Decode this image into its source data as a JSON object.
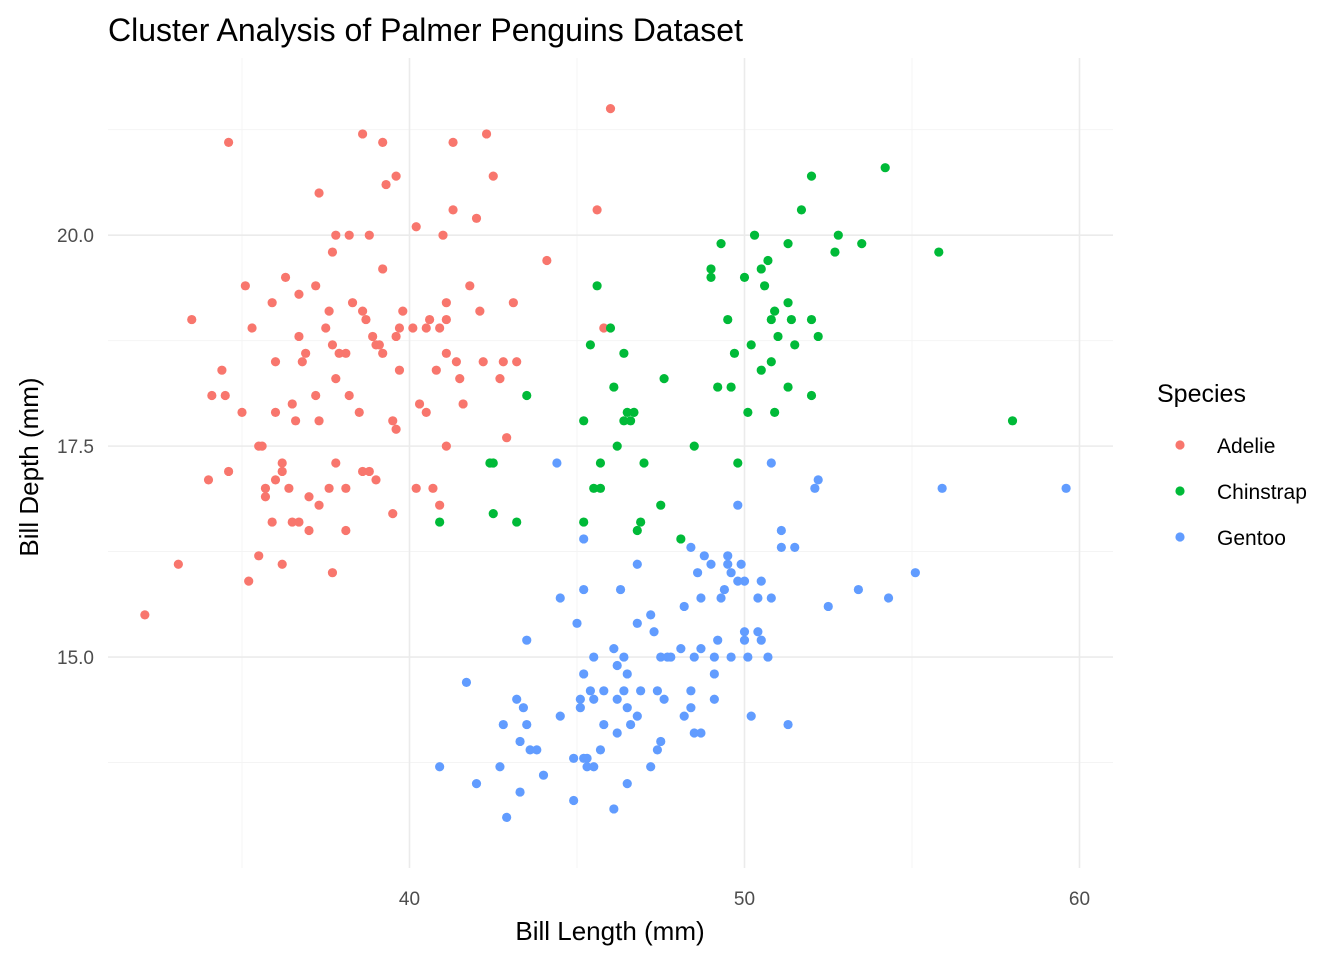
{
  "chart_data": {
    "type": "scatter",
    "title": "Cluster Analysis of Palmer Penguins Dataset",
    "xlabel": "Bill Length (mm)",
    "ylabel": "Bill Depth (mm)",
    "xlim": [
      31.0,
      61.0
    ],
    "ylim": [
      12.5,
      22.1
    ],
    "xticks": [
      40,
      50,
      60
    ],
    "xtick_labels": [
      "40",
      "50",
      "60"
    ],
    "yticks": [
      15.0,
      17.5,
      20.0
    ],
    "ytick_labels": [
      "15.0",
      "17.5",
      "20.0"
    ],
    "grid": true,
    "legend": {
      "title": "Species",
      "position": "right"
    },
    "series": [
      {
        "name": "Adelie",
        "color": "#F8766D",
        "points": [
          [
            32.1,
            15.5
          ],
          [
            33.1,
            16.1
          ],
          [
            33.5,
            19.0
          ],
          [
            34.0,
            17.1
          ],
          [
            34.1,
            18.1
          ],
          [
            34.4,
            18.4
          ],
          [
            34.5,
            18.1
          ],
          [
            34.6,
            21.1
          ],
          [
            34.6,
            17.2
          ],
          [
            35.0,
            17.9
          ],
          [
            35.1,
            19.4
          ],
          [
            35.2,
            15.9
          ],
          [
            35.3,
            18.9
          ],
          [
            35.5,
            16.2
          ],
          [
            35.5,
            17.5
          ],
          [
            35.6,
            17.5
          ],
          [
            35.7,
            17.0
          ],
          [
            35.7,
            16.9
          ],
          [
            35.9,
            16.6
          ],
          [
            35.9,
            19.2
          ],
          [
            36.0,
            17.1
          ],
          [
            36.0,
            17.9
          ],
          [
            36.0,
            18.5
          ],
          [
            36.2,
            16.1
          ],
          [
            36.2,
            17.2
          ],
          [
            36.2,
            17.3
          ],
          [
            36.3,
            19.5
          ],
          [
            36.4,
            17.0
          ],
          [
            36.5,
            16.6
          ],
          [
            36.5,
            18.0
          ],
          [
            36.6,
            17.8
          ],
          [
            36.7,
            16.6
          ],
          [
            36.7,
            18.8
          ],
          [
            36.7,
            19.3
          ],
          [
            36.8,
            18.5
          ],
          [
            36.9,
            18.6
          ],
          [
            37.0,
            16.9
          ],
          [
            37.0,
            16.5
          ],
          [
            37.2,
            18.1
          ],
          [
            37.2,
            19.4
          ],
          [
            37.3,
            17.8
          ],
          [
            37.3,
            16.8
          ],
          [
            37.3,
            20.5
          ],
          [
            37.5,
            18.9
          ],
          [
            37.6,
            19.1
          ],
          [
            37.6,
            17.0
          ],
          [
            37.7,
            18.7
          ],
          [
            37.7,
            16.0
          ],
          [
            37.7,
            19.8
          ],
          [
            37.8,
            20.0
          ],
          [
            37.8,
            17.3
          ],
          [
            37.8,
            18.3
          ],
          [
            37.9,
            18.6
          ],
          [
            38.1,
            18.6
          ],
          [
            38.1,
            17.0
          ],
          [
            38.1,
            16.5
          ],
          [
            38.2,
            18.1
          ],
          [
            38.2,
            20.0
          ],
          [
            38.3,
            19.2
          ],
          [
            38.5,
            17.9
          ],
          [
            38.6,
            21.2
          ],
          [
            38.6,
            17.2
          ],
          [
            38.6,
            19.1
          ],
          [
            38.7,
            19.0
          ],
          [
            38.8,
            17.2
          ],
          [
            38.8,
            20.0
          ],
          [
            38.9,
            18.8
          ],
          [
            39.0,
            18.7
          ],
          [
            39.0,
            17.1
          ],
          [
            39.1,
            18.7
          ],
          [
            39.2,
            21.1
          ],
          [
            39.2,
            19.6
          ],
          [
            39.2,
            18.6
          ],
          [
            39.3,
            20.6
          ],
          [
            39.5,
            16.7
          ],
          [
            39.5,
            17.8
          ],
          [
            39.6,
            20.7
          ],
          [
            39.6,
            17.7
          ],
          [
            39.6,
            18.8
          ],
          [
            39.7,
            18.4
          ],
          [
            39.7,
            18.9
          ],
          [
            39.8,
            19.1
          ],
          [
            40.1,
            18.9
          ],
          [
            40.2,
            20.1
          ],
          [
            40.2,
            17.0
          ],
          [
            40.3,
            18.0
          ],
          [
            40.5,
            17.9
          ],
          [
            40.5,
            18.9
          ],
          [
            40.6,
            19.0
          ],
          [
            40.7,
            17.0
          ],
          [
            40.8,
            18.4
          ],
          [
            40.9,
            18.9
          ],
          [
            40.9,
            16.8
          ],
          [
            41.0,
            20.0
          ],
          [
            41.1,
            19.0
          ],
          [
            41.1,
            17.5
          ],
          [
            41.1,
            18.6
          ],
          [
            41.1,
            19.2
          ],
          [
            41.3,
            20.3
          ],
          [
            41.3,
            21.1
          ],
          [
            41.4,
            18.5
          ],
          [
            41.5,
            18.3
          ],
          [
            41.6,
            18.0
          ],
          [
            41.8,
            19.4
          ],
          [
            42.0,
            20.2
          ],
          [
            42.1,
            19.1
          ],
          [
            42.2,
            18.5
          ],
          [
            42.3,
            21.2
          ],
          [
            42.5,
            20.7
          ],
          [
            42.7,
            18.3
          ],
          [
            42.8,
            18.5
          ],
          [
            42.9,
            17.6
          ],
          [
            43.1,
            19.2
          ],
          [
            43.2,
            18.5
          ],
          [
            44.1,
            19.7
          ],
          [
            45.6,
            20.3
          ],
          [
            45.8,
            18.9
          ],
          [
            46.0,
            21.5
          ]
        ]
      },
      {
        "name": "Chinstrap",
        "color": "#00BA38",
        "points": [
          [
            40.9,
            16.6
          ],
          [
            42.4,
            17.3
          ],
          [
            42.5,
            16.7
          ],
          [
            42.5,
            17.3
          ],
          [
            43.2,
            16.6
          ],
          [
            43.5,
            18.1
          ],
          [
            45.2,
            16.6
          ],
          [
            45.2,
            17.8
          ],
          [
            45.4,
            18.7
          ],
          [
            45.5,
            17.0
          ],
          [
            45.6,
            19.4
          ],
          [
            45.7,
            17.3
          ],
          [
            45.7,
            17.0
          ],
          [
            46.0,
            18.9
          ],
          [
            46.1,
            18.2
          ],
          [
            46.2,
            17.5
          ],
          [
            46.4,
            18.6
          ],
          [
            46.4,
            17.8
          ],
          [
            46.5,
            17.9
          ],
          [
            46.6,
            17.8
          ],
          [
            46.7,
            17.9
          ],
          [
            46.8,
            16.5
          ],
          [
            46.9,
            16.6
          ],
          [
            47.0,
            17.3
          ],
          [
            47.5,
            16.8
          ],
          [
            47.6,
            18.3
          ],
          [
            48.1,
            16.4
          ],
          [
            48.5,
            17.5
          ],
          [
            49.0,
            19.5
          ],
          [
            49.0,
            19.6
          ],
          [
            49.2,
            18.2
          ],
          [
            49.3,
            19.9
          ],
          [
            49.5,
            19.0
          ],
          [
            49.6,
            18.2
          ],
          [
            49.7,
            18.6
          ],
          [
            49.8,
            17.3
          ],
          [
            50.0,
            19.5
          ],
          [
            50.1,
            17.9
          ],
          [
            50.2,
            18.7
          ],
          [
            50.3,
            20.0
          ],
          [
            50.5,
            18.4
          ],
          [
            50.5,
            19.6
          ],
          [
            50.6,
            19.4
          ],
          [
            50.7,
            19.7
          ],
          [
            50.8,
            18.5
          ],
          [
            50.8,
            19.0
          ],
          [
            50.9,
            17.9
          ],
          [
            50.9,
            19.1
          ],
          [
            51.0,
            18.8
          ],
          [
            51.3,
            18.2
          ],
          [
            51.3,
            19.9
          ],
          [
            51.3,
            19.2
          ],
          [
            51.4,
            19.0
          ],
          [
            51.5,
            18.7
          ],
          [
            51.7,
            20.3
          ],
          [
            52.0,
            18.1
          ],
          [
            52.0,
            19.0
          ],
          [
            52.0,
            20.7
          ],
          [
            52.2,
            18.8
          ],
          [
            52.7,
            19.8
          ],
          [
            52.8,
            20.0
          ],
          [
            53.5,
            19.9
          ],
          [
            54.2,
            20.8
          ],
          [
            55.8,
            19.8
          ],
          [
            58.0,
            17.8
          ]
        ]
      },
      {
        "name": "Gentoo",
        "color": "#619CFF",
        "points": [
          [
            40.9,
            13.7
          ],
          [
            41.7,
            14.7
          ],
          [
            42.0,
            13.5
          ],
          [
            42.7,
            13.7
          ],
          [
            42.8,
            14.2
          ],
          [
            42.9,
            13.1
          ],
          [
            43.2,
            14.5
          ],
          [
            43.3,
            13.4
          ],
          [
            43.3,
            14.0
          ],
          [
            43.4,
            14.4
          ],
          [
            43.5,
            14.2
          ],
          [
            43.5,
            15.2
          ],
          [
            43.6,
            13.9
          ],
          [
            43.8,
            13.9
          ],
          [
            44.0,
            13.6
          ],
          [
            44.4,
            17.3
          ],
          [
            44.5,
            14.3
          ],
          [
            44.5,
            15.7
          ],
          [
            44.9,
            13.8
          ],
          [
            44.9,
            13.3
          ],
          [
            45.0,
            15.4
          ],
          [
            45.1,
            14.5
          ],
          [
            45.1,
            14.4
          ],
          [
            45.2,
            13.8
          ],
          [
            45.2,
            14.8
          ],
          [
            45.2,
            15.8
          ],
          [
            45.2,
            16.4
          ],
          [
            45.3,
            13.7
          ],
          [
            45.3,
            13.8
          ],
          [
            45.4,
            14.6
          ],
          [
            45.5,
            13.7
          ],
          [
            45.5,
            14.5
          ],
          [
            45.5,
            15.0
          ],
          [
            45.7,
            13.9
          ],
          [
            45.8,
            14.2
          ],
          [
            45.8,
            14.6
          ],
          [
            46.1,
            13.2
          ],
          [
            46.1,
            15.1
          ],
          [
            46.2,
            14.1
          ],
          [
            46.2,
            14.5
          ],
          [
            46.2,
            14.9
          ],
          [
            46.3,
            15.8
          ],
          [
            46.4,
            14.6
          ],
          [
            46.4,
            15.0
          ],
          [
            46.5,
            13.5
          ],
          [
            46.5,
            14.4
          ],
          [
            46.5,
            14.8
          ],
          [
            46.6,
            14.2
          ],
          [
            46.8,
            14.3
          ],
          [
            46.8,
            15.4
          ],
          [
            46.8,
            16.1
          ],
          [
            46.9,
            14.6
          ],
          [
            47.2,
            13.7
          ],
          [
            47.2,
            15.5
          ],
          [
            47.3,
            15.3
          ],
          [
            47.4,
            14.6
          ],
          [
            47.4,
            13.9
          ],
          [
            47.5,
            14.0
          ],
          [
            47.5,
            15.0
          ],
          [
            47.6,
            14.5
          ],
          [
            47.7,
            15.0
          ],
          [
            47.8,
            15.0
          ],
          [
            48.1,
            15.1
          ],
          [
            48.2,
            14.3
          ],
          [
            48.2,
            15.6
          ],
          [
            48.4,
            14.4
          ],
          [
            48.4,
            14.6
          ],
          [
            48.4,
            16.3
          ],
          [
            48.5,
            14.1
          ],
          [
            48.5,
            15.0
          ],
          [
            48.6,
            16.0
          ],
          [
            48.7,
            14.1
          ],
          [
            48.7,
            15.1
          ],
          [
            48.7,
            15.7
          ],
          [
            48.8,
            16.2
          ],
          [
            49.0,
            16.1
          ],
          [
            49.1,
            14.5
          ],
          [
            49.1,
            14.8
          ],
          [
            49.1,
            15.0
          ],
          [
            49.2,
            15.2
          ],
          [
            49.3,
            15.7
          ],
          [
            49.4,
            15.8
          ],
          [
            49.5,
            16.2
          ],
          [
            49.5,
            16.1
          ],
          [
            49.6,
            15.0
          ],
          [
            49.6,
            16.0
          ],
          [
            49.8,
            15.9
          ],
          [
            49.8,
            16.8
          ],
          [
            49.9,
            16.1
          ],
          [
            50.0,
            15.2
          ],
          [
            50.0,
            15.9
          ],
          [
            50.0,
            15.3
          ],
          [
            50.1,
            15.0
          ],
          [
            50.2,
            14.3
          ],
          [
            50.4,
            15.3
          ],
          [
            50.4,
            15.7
          ],
          [
            50.5,
            15.2
          ],
          [
            50.5,
            15.9
          ],
          [
            50.7,
            15.0
          ],
          [
            50.8,
            15.7
          ],
          [
            50.8,
            17.3
          ],
          [
            51.1,
            16.3
          ],
          [
            51.1,
            16.5
          ],
          [
            51.3,
            14.2
          ],
          [
            51.5,
            16.3
          ],
          [
            52.1,
            17.0
          ],
          [
            52.2,
            17.1
          ],
          [
            52.5,
            15.6
          ],
          [
            53.4,
            15.8
          ],
          [
            54.3,
            15.7
          ],
          [
            55.1,
            16.0
          ],
          [
            55.9,
            17.0
          ],
          [
            59.6,
            17.0
          ]
        ]
      }
    ]
  }
}
